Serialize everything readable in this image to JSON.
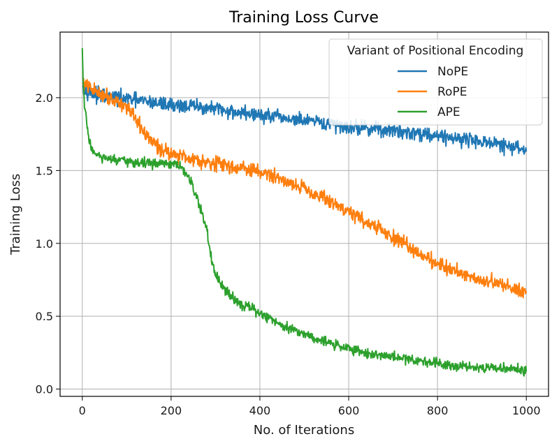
{
  "chart_data": {
    "type": "line",
    "title": "Training Loss Curve",
    "xlabel": "No. of Iterations",
    "ylabel": "Training Loss",
    "xlim": [
      -50,
      1050
    ],
    "ylim": [
      -0.05,
      2.45
    ],
    "xticks": [
      0,
      200,
      400,
      600,
      800,
      1000
    ],
    "xtick_labels": [
      "0",
      "200",
      "400",
      "600",
      "800",
      "1000"
    ],
    "yticks": [
      0.0,
      0.5,
      1.0,
      1.5,
      2.0
    ],
    "ytick_labels": [
      "0.0",
      "0.5",
      "1.0",
      "1.5",
      "2.0"
    ],
    "grid": true,
    "legend": {
      "title": "Variant of Positional Encoding",
      "placement": "top-right"
    },
    "series": [
      {
        "name": "NoPE",
        "color": "#1f77b4",
        "x": [
          0,
          25,
          50,
          100,
          150,
          200,
          250,
          300,
          350,
          400,
          450,
          500,
          550,
          600,
          650,
          700,
          750,
          800,
          850,
          900,
          950,
          1000
        ],
        "y": [
          2.08,
          2.02,
          2.01,
          1.99,
          1.97,
          1.95,
          1.94,
          1.92,
          1.9,
          1.88,
          1.86,
          1.84,
          1.82,
          1.8,
          1.79,
          1.77,
          1.76,
          1.74,
          1.72,
          1.7,
          1.67,
          1.64
        ],
        "noise": 0.05
      },
      {
        "name": "RoPE",
        "color": "#ff7f0e",
        "x": [
          0,
          25,
          50,
          75,
          100,
          125,
          150,
          175,
          200,
          250,
          300,
          350,
          400,
          450,
          500,
          550,
          600,
          650,
          700,
          750,
          800,
          850,
          900,
          950,
          1000
        ],
        "y": [
          2.1,
          2.05,
          2.02,
          1.98,
          1.94,
          1.82,
          1.72,
          1.65,
          1.62,
          1.58,
          1.55,
          1.52,
          1.49,
          1.44,
          1.38,
          1.3,
          1.22,
          1.13,
          1.04,
          0.95,
          0.86,
          0.8,
          0.75,
          0.71,
          0.67
        ],
        "noise": 0.05
      },
      {
        "name": "APE",
        "color": "#2ca02c",
        "x": [
          0,
          2,
          5,
          10,
          15,
          20,
          30,
          50,
          100,
          150,
          200,
          220,
          240,
          260,
          280,
          290,
          300,
          320,
          350,
          400,
          450,
          500,
          550,
          600,
          650,
          700,
          750,
          800,
          850,
          900,
          950,
          1000
        ],
        "y": [
          2.34,
          2.1,
          1.95,
          1.82,
          1.72,
          1.66,
          1.61,
          1.58,
          1.56,
          1.55,
          1.54,
          1.53,
          1.45,
          1.3,
          1.1,
          0.9,
          0.78,
          0.68,
          0.6,
          0.52,
          0.44,
          0.38,
          0.32,
          0.28,
          0.24,
          0.22,
          0.2,
          0.18,
          0.16,
          0.15,
          0.14,
          0.13
        ],
        "noise": 0.035
      }
    ]
  }
}
